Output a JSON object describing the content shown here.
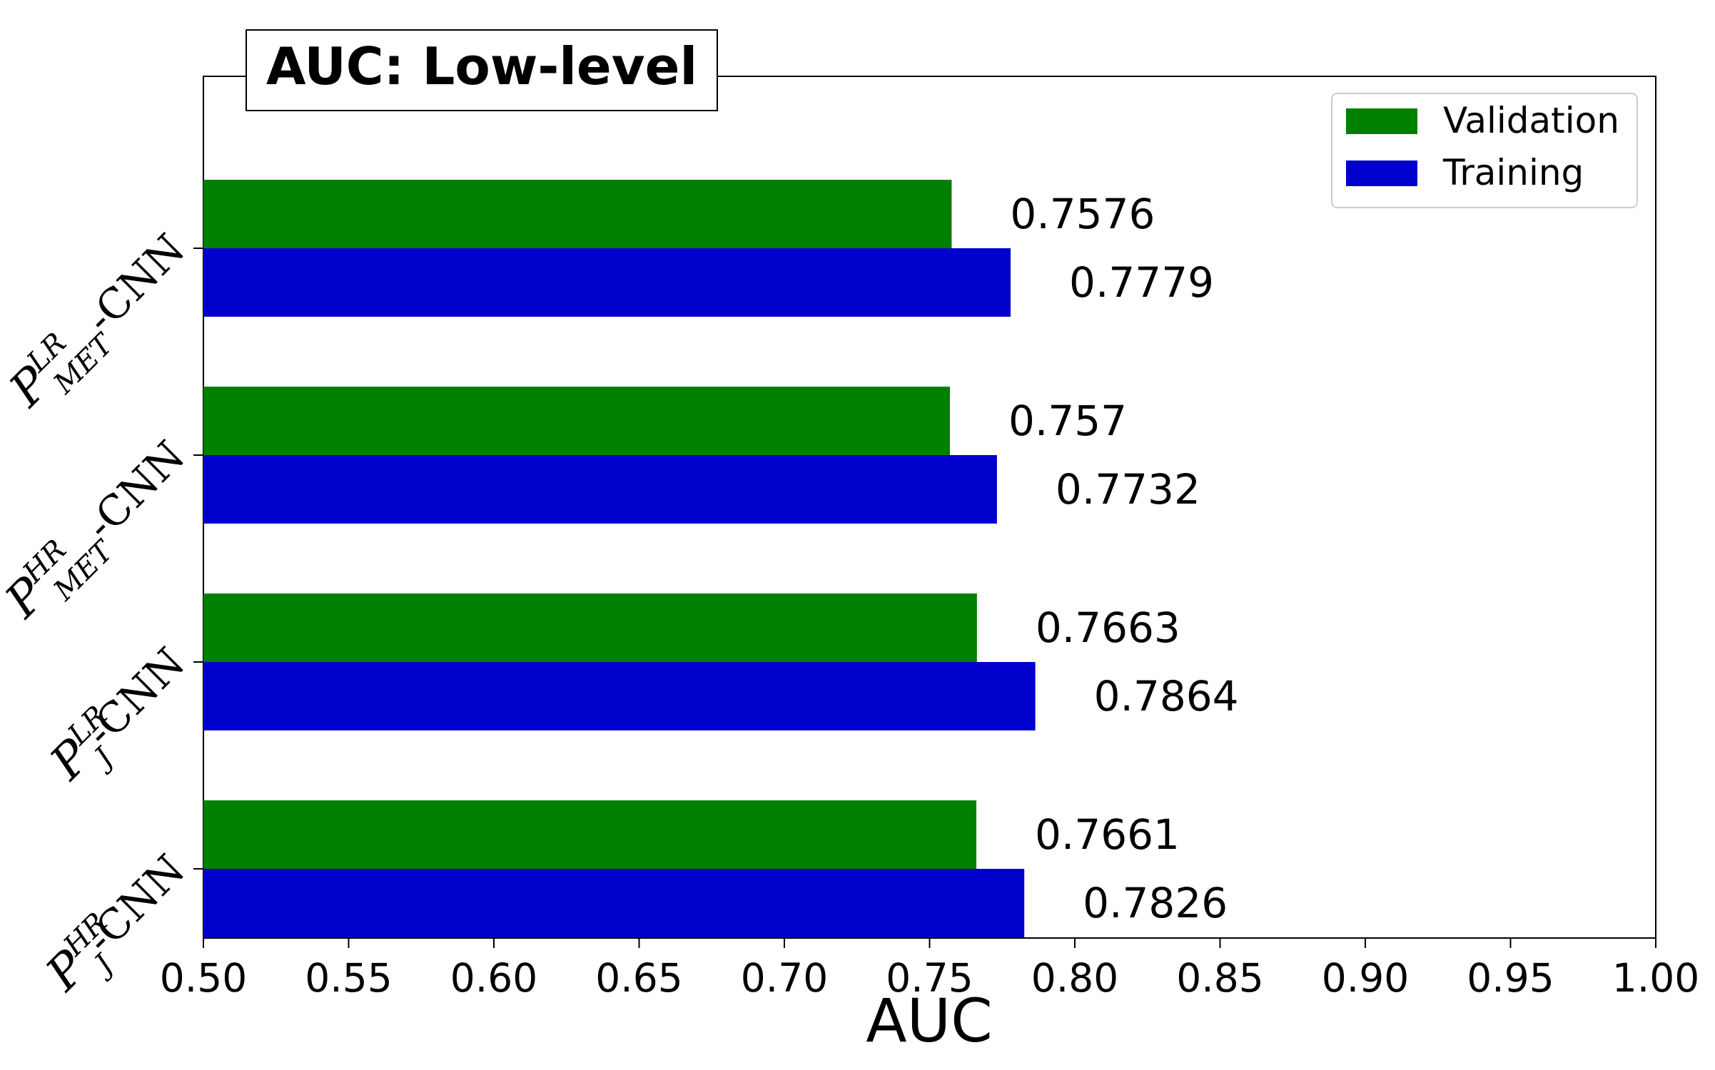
{
  "chart_data": {
    "type": "bar",
    "orientation": "horizontal",
    "title": "AUC: Low-level",
    "xlabel": "AUC",
    "ylabel": "",
    "xlim": [
      0.5,
      1.0
    ],
    "x_ticks": [
      "0.50",
      "0.55",
      "0.60",
      "0.65",
      "0.70",
      "0.75",
      "0.80",
      "0.85",
      "0.90",
      "0.95",
      "1.00"
    ],
    "grid": false,
    "legend_position": "top-right",
    "categories": [
      {
        "symbol": "P",
        "sup": "LR",
        "sub": "MET",
        "suffix": "-CNN"
      },
      {
        "symbol": "P",
        "sup": "HR",
        "sub": "MET",
        "suffix": "-CNN"
      },
      {
        "symbol": "P",
        "sup": "LR",
        "sub": "J",
        "suffix": "-CNN"
      },
      {
        "symbol": "P",
        "sup": "HR",
        "sub": "J",
        "suffix": "-CNN"
      }
    ],
    "series": [
      {
        "name": "Validation",
        "color": "#008000",
        "values": [
          0.7576,
          0.757,
          0.7663,
          0.7661
        ],
        "labels": [
          "0.7576",
          "0.757",
          "0.7663",
          "0.7661"
        ]
      },
      {
        "name": "Training",
        "color": "#0000cc",
        "values": [
          0.7779,
          0.7732,
          0.7864,
          0.7826
        ],
        "labels": [
          "0.7779",
          "0.7732",
          "0.7864",
          "0.7826"
        ]
      }
    ]
  }
}
